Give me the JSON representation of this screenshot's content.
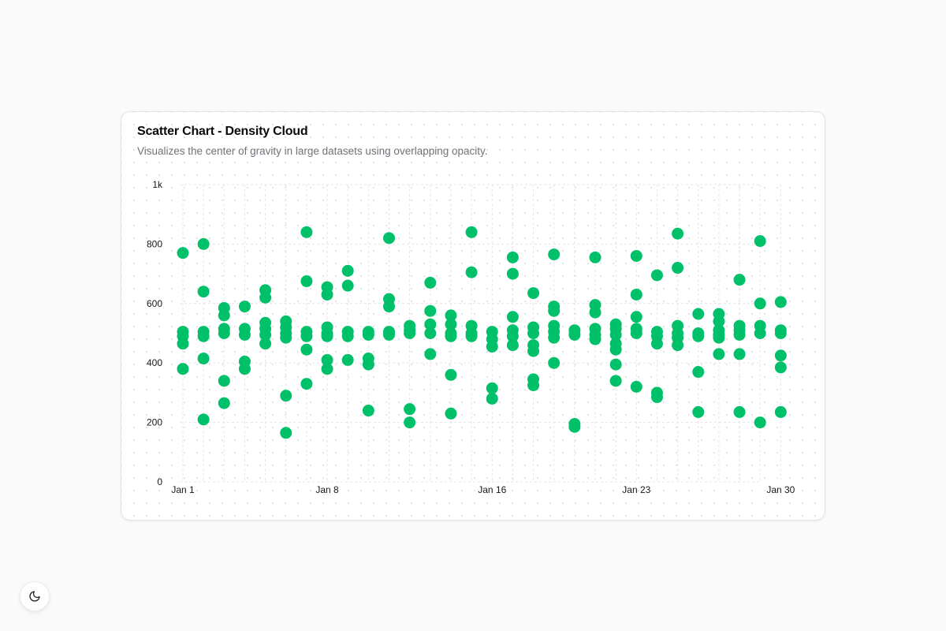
{
  "card": {
    "title": "Scatter Chart - Density Cloud",
    "subtitle": "Visualizes the center of gravity in large datasets using overlapping opacity."
  },
  "theme_toggle": {
    "icon": "moon-icon"
  },
  "colors": {
    "accent": "#00c16a",
    "grid": "#e4e4e7",
    "tick_text": "#18181b"
  },
  "chart_data": {
    "type": "scatter",
    "title": "Scatter Chart - Density Cloud",
    "subtitle": "Visualizes the center of gravity in large datasets using overlapping opacity.",
    "xlabel": "",
    "ylabel": "",
    "ylim": [
      0,
      1000
    ],
    "y_ticks": [
      {
        "value": 0,
        "label": "0"
      },
      {
        "value": 200,
        "label": "200"
      },
      {
        "value": 400,
        "label": "400"
      },
      {
        "value": 600,
        "label": "600"
      },
      {
        "value": 800,
        "label": "800"
      },
      {
        "value": 1000,
        "label": "1k"
      }
    ],
    "x_ticks": [
      {
        "day": 1,
        "label": "Jan 1"
      },
      {
        "day": 8,
        "label": "Jan 8"
      },
      {
        "day": 16,
        "label": "Jan 16"
      },
      {
        "day": 23,
        "label": "Jan 23"
      },
      {
        "day": 30,
        "label": "Jan 30"
      }
    ],
    "grid": true,
    "series": [
      {
        "points": [
          {
            "day": 1,
            "y": 770
          },
          {
            "day": 1,
            "y": 505
          },
          {
            "day": 1,
            "y": 490
          },
          {
            "day": 1,
            "y": 465
          },
          {
            "day": 1,
            "y": 380
          },
          {
            "day": 2,
            "y": 800
          },
          {
            "day": 2,
            "y": 640
          },
          {
            "day": 2,
            "y": 505
          },
          {
            "day": 2,
            "y": 490
          },
          {
            "day": 2,
            "y": 415
          },
          {
            "day": 2,
            "y": 210
          },
          {
            "day": 3,
            "y": 585
          },
          {
            "day": 3,
            "y": 560
          },
          {
            "day": 3,
            "y": 515
          },
          {
            "day": 3,
            "y": 500
          },
          {
            "day": 3,
            "y": 340
          },
          {
            "day": 3,
            "y": 265
          },
          {
            "day": 4,
            "y": 590
          },
          {
            "day": 4,
            "y": 515
          },
          {
            "day": 4,
            "y": 495
          },
          {
            "day": 4,
            "y": 405
          },
          {
            "day": 4,
            "y": 380
          },
          {
            "day": 5,
            "y": 645
          },
          {
            "day": 5,
            "y": 620
          },
          {
            "day": 5,
            "y": 535
          },
          {
            "day": 5,
            "y": 515
          },
          {
            "day": 5,
            "y": 495
          },
          {
            "day": 5,
            "y": 465
          },
          {
            "day": 6,
            "y": 540
          },
          {
            "day": 6,
            "y": 520
          },
          {
            "day": 6,
            "y": 500
          },
          {
            "day": 6,
            "y": 485
          },
          {
            "day": 6,
            "y": 290
          },
          {
            "day": 6,
            "y": 165
          },
          {
            "day": 7,
            "y": 840
          },
          {
            "day": 7,
            "y": 675
          },
          {
            "day": 7,
            "y": 505
          },
          {
            "day": 7,
            "y": 490
          },
          {
            "day": 7,
            "y": 445
          },
          {
            "day": 7,
            "y": 330
          },
          {
            "day": 8,
            "y": 655
          },
          {
            "day": 8,
            "y": 630
          },
          {
            "day": 8,
            "y": 520
          },
          {
            "day": 8,
            "y": 500
          },
          {
            "day": 8,
            "y": 490
          },
          {
            "day": 8,
            "y": 410
          },
          {
            "day": 8,
            "y": 380
          },
          {
            "day": 9,
            "y": 710
          },
          {
            "day": 9,
            "y": 660
          },
          {
            "day": 9,
            "y": 505
          },
          {
            "day": 9,
            "y": 490
          },
          {
            "day": 9,
            "y": 410
          },
          {
            "day": 10,
            "y": 505
          },
          {
            "day": 10,
            "y": 495
          },
          {
            "day": 10,
            "y": 415
          },
          {
            "day": 10,
            "y": 395
          },
          {
            "day": 10,
            "y": 240
          },
          {
            "day": 11,
            "y": 820
          },
          {
            "day": 11,
            "y": 615
          },
          {
            "day": 11,
            "y": 590
          },
          {
            "day": 11,
            "y": 505
          },
          {
            "day": 11,
            "y": 495
          },
          {
            "day": 12,
            "y": 525
          },
          {
            "day": 12,
            "y": 510
          },
          {
            "day": 12,
            "y": 500
          },
          {
            "day": 12,
            "y": 245
          },
          {
            "day": 12,
            "y": 200
          },
          {
            "day": 13,
            "y": 670
          },
          {
            "day": 13,
            "y": 575
          },
          {
            "day": 13,
            "y": 530
          },
          {
            "day": 13,
            "y": 500
          },
          {
            "day": 13,
            "y": 430
          },
          {
            "day": 14,
            "y": 560
          },
          {
            "day": 14,
            "y": 530
          },
          {
            "day": 14,
            "y": 500
          },
          {
            "day": 14,
            "y": 490
          },
          {
            "day": 14,
            "y": 360
          },
          {
            "day": 14,
            "y": 230
          },
          {
            "day": 15,
            "y": 840
          },
          {
            "day": 15,
            "y": 705
          },
          {
            "day": 15,
            "y": 525
          },
          {
            "day": 15,
            "y": 500
          },
          {
            "day": 15,
            "y": 490
          },
          {
            "day": 16,
            "y": 505
          },
          {
            "day": 16,
            "y": 480
          },
          {
            "day": 16,
            "y": 455
          },
          {
            "day": 16,
            "y": 315
          },
          {
            "day": 16,
            "y": 280
          },
          {
            "day": 17,
            "y": 755
          },
          {
            "day": 17,
            "y": 700
          },
          {
            "day": 17,
            "y": 555
          },
          {
            "day": 17,
            "y": 510
          },
          {
            "day": 17,
            "y": 490
          },
          {
            "day": 17,
            "y": 460
          },
          {
            "day": 18,
            "y": 635
          },
          {
            "day": 18,
            "y": 520
          },
          {
            "day": 18,
            "y": 500
          },
          {
            "day": 18,
            "y": 460
          },
          {
            "day": 18,
            "y": 440
          },
          {
            "day": 18,
            "y": 345
          },
          {
            "day": 18,
            "y": 325
          },
          {
            "day": 19,
            "y": 765
          },
          {
            "day": 19,
            "y": 590
          },
          {
            "day": 19,
            "y": 575
          },
          {
            "day": 19,
            "y": 525
          },
          {
            "day": 19,
            "y": 505
          },
          {
            "day": 19,
            "y": 485
          },
          {
            "day": 19,
            "y": 400
          },
          {
            "day": 20,
            "y": 510
          },
          {
            "day": 20,
            "y": 495
          },
          {
            "day": 20,
            "y": 195
          },
          {
            "day": 20,
            "y": 185
          },
          {
            "day": 21,
            "y": 755
          },
          {
            "day": 21,
            "y": 595
          },
          {
            "day": 21,
            "y": 570
          },
          {
            "day": 21,
            "y": 515
          },
          {
            "day": 21,
            "y": 495
          },
          {
            "day": 21,
            "y": 480
          },
          {
            "day": 22,
            "y": 530
          },
          {
            "day": 22,
            "y": 515
          },
          {
            "day": 22,
            "y": 495
          },
          {
            "day": 22,
            "y": 465
          },
          {
            "day": 22,
            "y": 445
          },
          {
            "day": 22,
            "y": 395
          },
          {
            "day": 22,
            "y": 340
          },
          {
            "day": 23,
            "y": 760
          },
          {
            "day": 23,
            "y": 630
          },
          {
            "day": 23,
            "y": 555
          },
          {
            "day": 23,
            "y": 515
          },
          {
            "day": 23,
            "y": 500
          },
          {
            "day": 23,
            "y": 320
          },
          {
            "day": 24,
            "y": 695
          },
          {
            "day": 24,
            "y": 505
          },
          {
            "day": 24,
            "y": 490
          },
          {
            "day": 24,
            "y": 465
          },
          {
            "day": 24,
            "y": 300
          },
          {
            "day": 24,
            "y": 285
          },
          {
            "day": 25,
            "y": 835
          },
          {
            "day": 25,
            "y": 720
          },
          {
            "day": 25,
            "y": 525
          },
          {
            "day": 25,
            "y": 500
          },
          {
            "day": 25,
            "y": 485
          },
          {
            "day": 25,
            "y": 460
          },
          {
            "day": 26,
            "y": 565
          },
          {
            "day": 26,
            "y": 500
          },
          {
            "day": 26,
            "y": 490
          },
          {
            "day": 26,
            "y": 370
          },
          {
            "day": 26,
            "y": 235
          },
          {
            "day": 27,
            "y": 565
          },
          {
            "day": 27,
            "y": 540
          },
          {
            "day": 27,
            "y": 510
          },
          {
            "day": 27,
            "y": 495
          },
          {
            "day": 27,
            "y": 485
          },
          {
            "day": 27,
            "y": 430
          },
          {
            "day": 28,
            "y": 680
          },
          {
            "day": 28,
            "y": 525
          },
          {
            "day": 28,
            "y": 510
          },
          {
            "day": 28,
            "y": 495
          },
          {
            "day": 28,
            "y": 430
          },
          {
            "day": 28,
            "y": 235
          },
          {
            "day": 29,
            "y": 810
          },
          {
            "day": 29,
            "y": 600
          },
          {
            "day": 29,
            "y": 525
          },
          {
            "day": 29,
            "y": 500
          },
          {
            "day": 29,
            "y": 200
          },
          {
            "day": 30,
            "y": 605
          },
          {
            "day": 30,
            "y": 510
          },
          {
            "day": 30,
            "y": 500
          },
          {
            "day": 30,
            "y": 425
          },
          {
            "day": 30,
            "y": 385
          },
          {
            "day": 30,
            "y": 235
          }
        ]
      }
    ]
  }
}
